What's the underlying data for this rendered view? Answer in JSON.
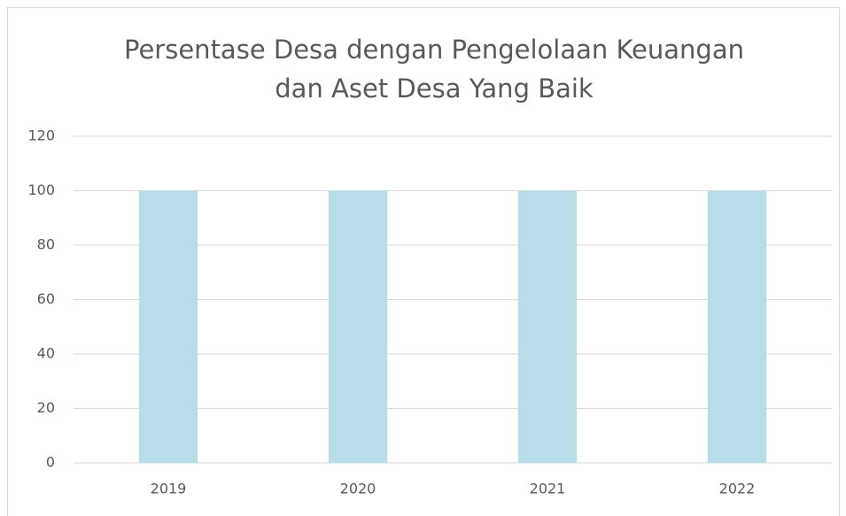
{
  "chart_data": {
    "type": "bar",
    "title": [
      "Persentase Desa dengan Pengelolaan Keuangan",
      "dan Aset Desa Yang Baik"
    ],
    "categories": [
      "2019",
      "2020",
      "2021",
      "2022"
    ],
    "values": [
      100,
      100,
      100,
      100
    ],
    "color": "#b7dde8",
    "ylim": [
      0,
      120
    ],
    "yticks": [
      0,
      20,
      40,
      60,
      80,
      100,
      120
    ],
    "grid": true
  }
}
